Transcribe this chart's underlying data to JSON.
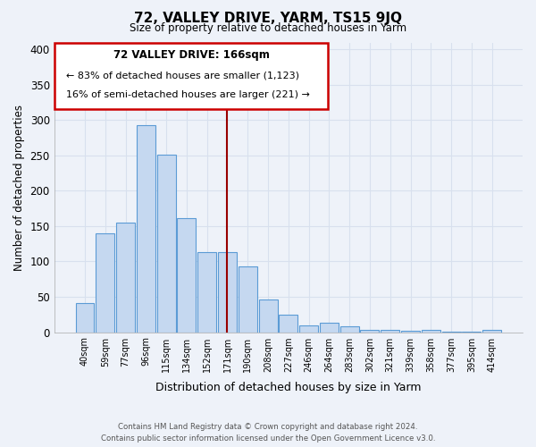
{
  "title": "72, VALLEY DRIVE, YARM, TS15 9JQ",
  "subtitle": "Size of property relative to detached houses in Yarm",
  "xlabel": "Distribution of detached houses by size in Yarm",
  "ylabel": "Number of detached properties",
  "bar_color": "#c5d8f0",
  "bar_edge_color": "#5b9bd5",
  "categories": [
    "40sqm",
    "59sqm",
    "77sqm",
    "96sqm",
    "115sqm",
    "134sqm",
    "152sqm",
    "171sqm",
    "190sqm",
    "208sqm",
    "227sqm",
    "246sqm",
    "264sqm",
    "283sqm",
    "302sqm",
    "321sqm",
    "339sqm",
    "358sqm",
    "377sqm",
    "395sqm",
    "414sqm"
  ],
  "values": [
    41,
    140,
    155,
    293,
    251,
    161,
    113,
    113,
    93,
    46,
    25,
    10,
    13,
    8,
    3,
    3,
    2,
    3,
    1,
    1,
    3
  ],
  "ylim": [
    0,
    410
  ],
  "yticks": [
    0,
    50,
    100,
    150,
    200,
    250,
    300,
    350,
    400
  ],
  "marker_index": 7,
  "annotation_line1": "72 VALLEY DRIVE: 166sqm",
  "annotation_line2": "← 83% of detached houses are smaller (1,123)",
  "annotation_line3": "16% of semi-detached houses are larger (221) →",
  "marker_color": "#990000",
  "footnote1": "Contains HM Land Registry data © Crown copyright and database right 2024.",
  "footnote2": "Contains public sector information licensed under the Open Government Licence v3.0.",
  "background_color": "#eef2f9",
  "grid_color": "#d8e0ee",
  "annotation_box_color": "#ffffff",
  "annotation_box_edge": "#cc0000"
}
